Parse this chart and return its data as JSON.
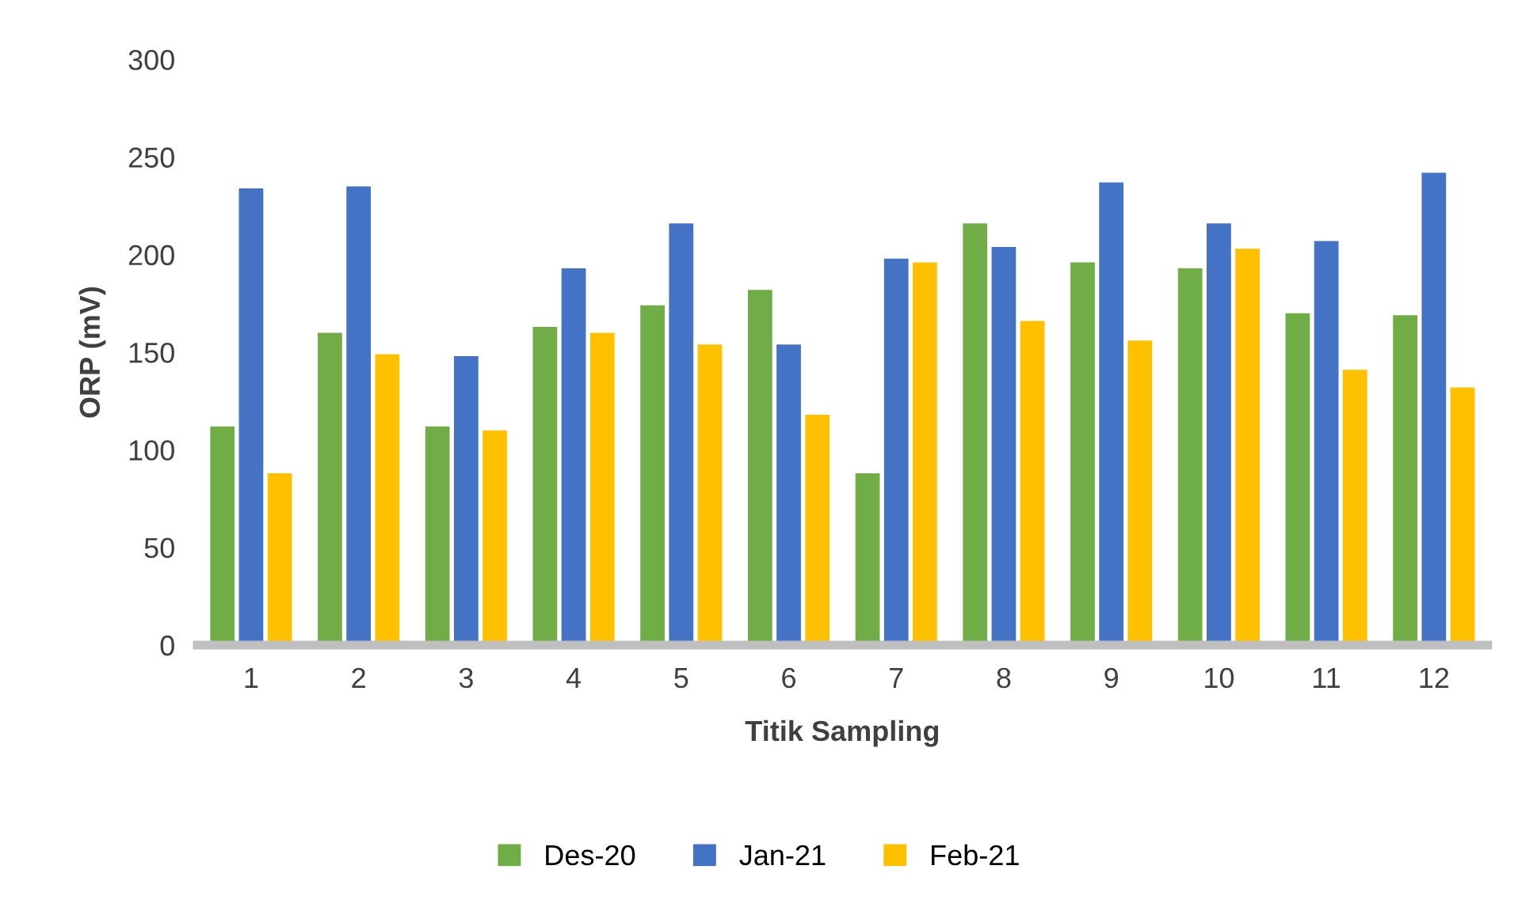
{
  "chart_data": {
    "type": "bar",
    "xlabel": "Titik Sampling",
    "ylabel": "ORP (mV)",
    "categories": [
      "1",
      "2",
      "3",
      "4",
      "5",
      "6",
      "7",
      "8",
      "9",
      "10",
      "11",
      "12"
    ],
    "series": [
      {
        "name": "Des-20",
        "color": "#70ad47",
        "values": [
          112,
          160,
          112,
          163,
          174,
          182,
          88,
          216,
          196,
          193,
          170,
          169
        ]
      },
      {
        "name": "Jan-21",
        "color": "#4472c4",
        "values": [
          234,
          235,
          148,
          193,
          216,
          154,
          198,
          204,
          237,
          216,
          207,
          242
        ]
      },
      {
        "name": "Feb-21",
        "color": "#ffc000",
        "values": [
          88,
          149,
          110,
          160,
          154,
          118,
          196,
          166,
          156,
          203,
          141,
          132
        ]
      }
    ],
    "ylim": [
      0,
      300
    ],
    "yticks": [
      0,
      50,
      100,
      150,
      200,
      250,
      300
    ],
    "grid": false,
    "legend": "bottom"
  }
}
